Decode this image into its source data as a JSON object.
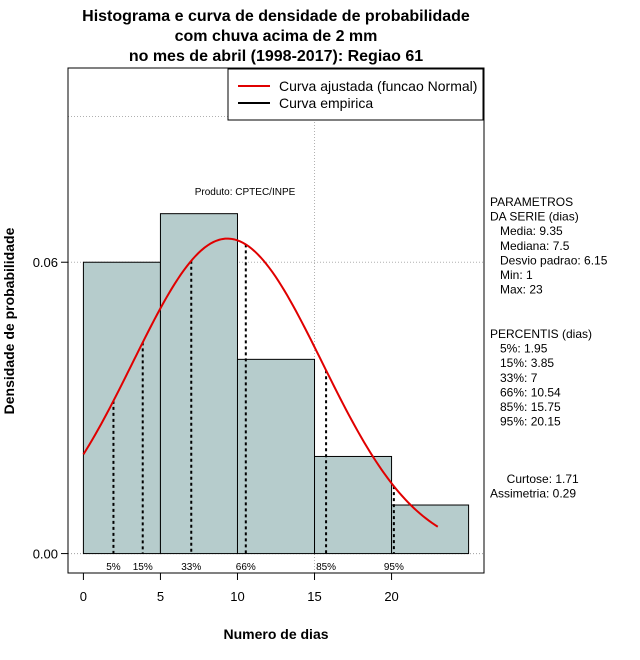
{
  "chart_data": {
    "type": "bar",
    "title_lines": [
      "Histograma e curva de densidade de probabilidade",
      "com chuva acima de 2 mm",
      "no mes de abril (1998-2017): Regiao 61"
    ],
    "xlabel": "Numero de dias",
    "ylabel": "Densidade de probabilidade",
    "xlim": [
      -1,
      26
    ],
    "ylim": [
      -0.004,
      0.1
    ],
    "x_ticks": [
      0,
      5,
      10,
      15,
      20
    ],
    "y_ticks": [
      0.0,
      0.06
    ],
    "y_tick_labels": [
      "0.00",
      "0.06"
    ],
    "grid_y": [
      0.06,
      0.09
    ],
    "grid_x": [
      15
    ],
    "bins": [
      {
        "start": 0,
        "end": 5,
        "density": 0.06
      },
      {
        "start": 5,
        "end": 10,
        "density": 0.07
      },
      {
        "start": 10,
        "end": 15,
        "density": 0.04
      },
      {
        "start": 15,
        "end": 20,
        "density": 0.02
      },
      {
        "start": 20,
        "end": 25,
        "density": 0.01
      }
    ],
    "bar_color": "#b6cccc",
    "normal_curve": {
      "mean": 9.35,
      "sd": 6.15,
      "x_start": 0,
      "x_end": 23,
      "color": "#e00000"
    },
    "percentile_lines": [
      {
        "x": 1.95,
        "label": "5%"
      },
      {
        "x": 3.85,
        "label": "15%"
      },
      {
        "x": 7,
        "label": "33%"
      },
      {
        "x": 10.54,
        "label": "66%"
      },
      {
        "x": 15.75,
        "label": "85%"
      },
      {
        "x": 20.15,
        "label": "95%"
      }
    ],
    "legend": [
      {
        "label": "Curva ajustada (funcao Normal)",
        "color": "#e00000"
      },
      {
        "label": "Curva empirica",
        "color": "#000000"
      }
    ],
    "legend_position": "top-right",
    "annotation": "Produto: CPTEC/INPE"
  },
  "side_panel": {
    "parametros": [
      "PARAMETROS",
      "DA SERIE (dias)",
      "   Media: 9.35",
      "   Mediana: 7.5",
      "   Desvio padrao: 6.15",
      "   Min: 1",
      "   Max: 23"
    ],
    "percentis": [
      "PERCENTIS (dias)",
      "   5%: 1.95",
      "   15%: 3.85",
      "   33%: 7",
      "   66%: 10.54",
      "   85%: 15.75",
      "   95%: 20.15"
    ],
    "stats": [
      "     Curtose: 1.71",
      "Assimetria: 0.29"
    ]
  }
}
